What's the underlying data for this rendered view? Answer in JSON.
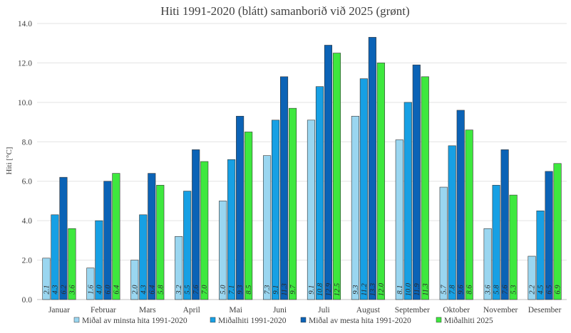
{
  "chart_data": {
    "type": "bar",
    "title": "Hiti 1991-2020 (blátt) samanborið við 2025 (grønt)",
    "xlabel": "",
    "ylabel": "Hiti [°C]",
    "ylim": [
      0,
      14
    ],
    "yticks": [
      "0.0",
      "2.0",
      "4.0",
      "6.0",
      "8.0",
      "10.0",
      "12.0",
      "14.0"
    ],
    "grid": true,
    "legend_position": "bottom",
    "categories": [
      "Januar",
      "Februar",
      "Mars",
      "April",
      "Mai",
      "Juni",
      "Juli",
      "August",
      "September",
      "Oktober",
      "November",
      "Desember"
    ],
    "series": [
      {
        "name": "Miðal av minsta hita 1991-2020",
        "color": "#9ad6f0",
        "values": [
          2.1,
          1.6,
          2.0,
          3.2,
          5.0,
          7.3,
          9.1,
          9.3,
          8.1,
          5.7,
          3.6,
          2.2
        ],
        "labels": [
          "2.1",
          "1.6",
          "2.0",
          "3.2",
          "5.0",
          "7.3",
          "9.1",
          "9.3",
          "8.1",
          "5.7",
          "3.6",
          "2.2"
        ]
      },
      {
        "name": "Miðalhiti 1991-2020",
        "color": "#17a0e4",
        "values": [
          4.3,
          4.0,
          4.3,
          5.5,
          7.1,
          9.1,
          10.8,
          11.2,
          10.0,
          7.8,
          5.8,
          4.5
        ],
        "labels": [
          "4.3",
          "4.0",
          "4.3",
          "5.5",
          "7.1",
          "9.1",
          "10.8",
          "11.2",
          "10.0",
          "7.8",
          "5.8",
          "4.5"
        ]
      },
      {
        "name": "Miðal av mesta hita 1991-2020",
        "color": "#0b63b6",
        "values": [
          6.2,
          6.0,
          6.4,
          7.6,
          9.3,
          11.3,
          12.9,
          13.3,
          11.9,
          9.6,
          7.6,
          6.5
        ],
        "labels": [
          "6.2",
          "6.0",
          "6.4",
          "7.6",
          "9.3",
          "11.3",
          "12.9",
          "13.3",
          "11.9",
          "9.6",
          "7.6",
          "6.5"
        ]
      },
      {
        "name": "Miðalhiti 2025",
        "color": "#3ee83e",
        "values": [
          3.6,
          6.4,
          5.8,
          7.0,
          8.5,
          9.7,
          12.5,
          12.0,
          11.3,
          8.6,
          5.3,
          6.9
        ],
        "labels": [
          "3.6",
          "6.4",
          "5.8",
          "7.0",
          "8.5",
          "9.7",
          "12.5",
          "12.0",
          "11.3",
          "8.6",
          "5.3",
          "6.9"
        ]
      }
    ]
  }
}
